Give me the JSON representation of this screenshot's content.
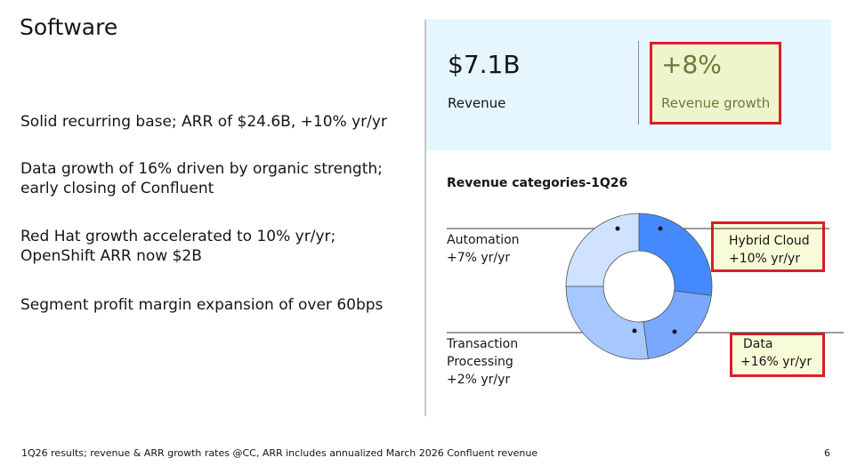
{
  "header": {
    "title": "Software"
  },
  "bullets": [
    "Solid recurring base; ARR of $24.6B, +10% yr/yr",
    "Data growth of 16% driven by organic strength; early closing of Confluent",
    "Red Hat growth accelerated to 10% yr/yr; OpenShift ARR now $2B",
    "Segment profit margin expansion of over 60bps"
  ],
  "kpis": [
    {
      "value": "$7.1B",
      "label": "Revenue"
    },
    {
      "value": "+8%",
      "label": "Revenue growth"
    }
  ],
  "chart_data": {
    "type": "donut",
    "title": "Revenue categories-1Q26",
    "categories": [
      "Hybrid Cloud",
      "Data",
      "Transaction Processing",
      "Automation"
    ],
    "growth_labels": [
      "+10% yr/yr",
      "+16% yr/yr",
      "+2% yr/yr",
      "+7% yr/yr"
    ],
    "values": [
      27,
      21,
      27,
      25
    ],
    "colors": [
      "#4589ff",
      "#78a9ff",
      "#a6c8ff",
      "#d0e2ff"
    ]
  },
  "footer": {
    "note": "1Q26 results; revenue & ARR growth rates @CC, ARR includes annualized March 2026 Confluent revenue",
    "page": "6"
  }
}
